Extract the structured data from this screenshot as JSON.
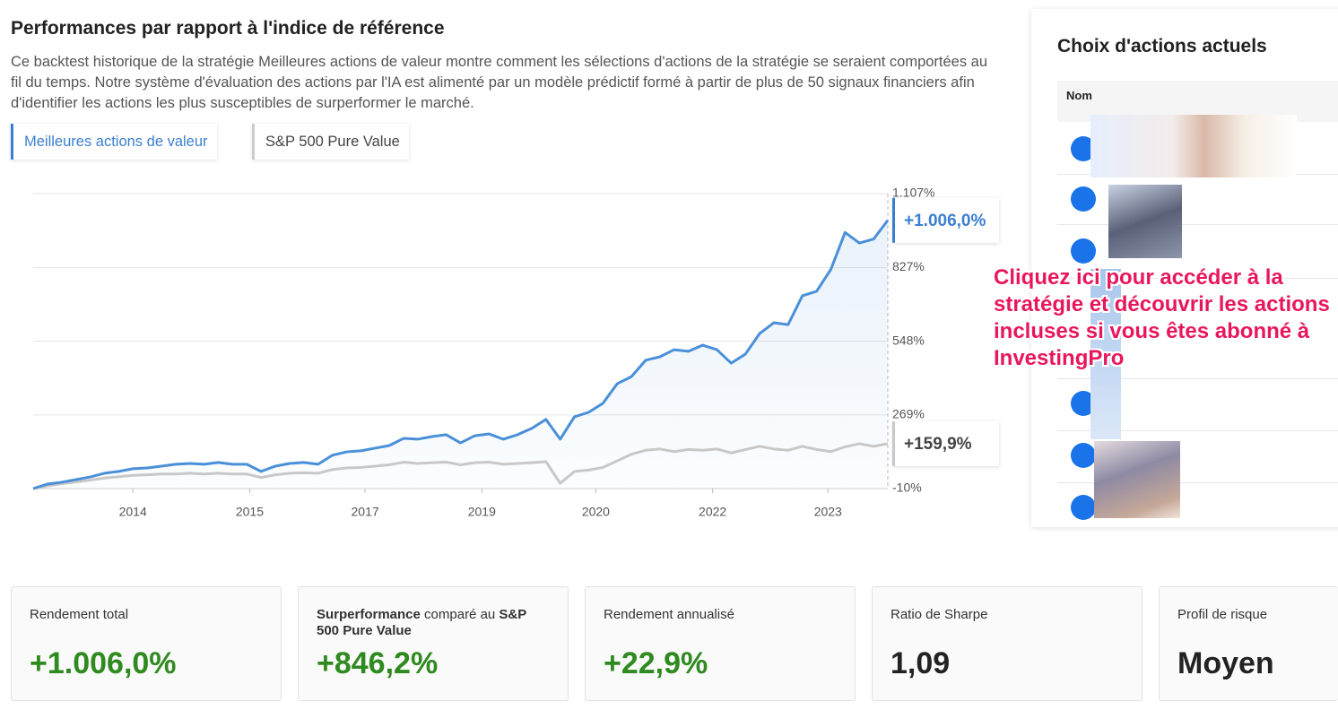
{
  "header": {
    "title": "Performances par rapport à l'indice de référence",
    "description": "Ce backtest historique de la stratégie Meilleures actions de valeur montre comment les sélections d'actions de la stratégie se seraient comportées au fil du temps. Notre système d'évaluation des actions par l'IA est alimenté par un modèle prédictif formé à partir de plus de 50 signaux financiers afin d'identifier les actions les plus susceptibles de surperformer le marché."
  },
  "tabs": [
    "Meilleures actions de valeur",
    "S&P 500 Pure Value"
  ],
  "chart_data": {
    "type": "line",
    "x": [
      0,
      1,
      2,
      3,
      4,
      5,
      6,
      7,
      8,
      9,
      10,
      11,
      12,
      13,
      14,
      15,
      16,
      17,
      18,
      19,
      20,
      21,
      22,
      23,
      24,
      25,
      26,
      27,
      28,
      29,
      30,
      31,
      32,
      33,
      34,
      35,
      36,
      37,
      38,
      39,
      40,
      41,
      42,
      43,
      44,
      45,
      46,
      47,
      48,
      49,
      50,
      51,
      52,
      53,
      54,
      55,
      56,
      57,
      58,
      59,
      60
    ],
    "xlim": [
      0,
      60
    ],
    "xticks": [
      {
        "value": 7,
        "label": "2014"
      },
      {
        "value": 15.2,
        "label": "2015"
      },
      {
        "value": 23.3,
        "label": "2017"
      },
      {
        "value": 31.5,
        "label": "2019"
      },
      {
        "value": 39.5,
        "label": "2020"
      },
      {
        "value": 47.7,
        "label": "2022"
      },
      {
        "value": 55.8,
        "label": "2023"
      }
    ],
    "ylim": [
      -10,
      1107
    ],
    "yticks": [
      {
        "value": -10,
        "label": "-10%"
      },
      {
        "value": 269,
        "label": "269%"
      },
      {
        "value": 548,
        "label": "548%"
      },
      {
        "value": 827,
        "label": "827%"
      },
      {
        "value": 1107,
        "label": "1.107%"
      }
    ],
    "grid": true,
    "series": [
      {
        "name": "Meilleures actions de valeur",
        "color": "#4a90d9",
        "values": [
          -10,
          7,
          14,
          24,
          34,
          48,
          55,
          65,
          68,
          75,
          82,
          85,
          82,
          89,
          82,
          82,
          55,
          75,
          85,
          89,
          82,
          116,
          129,
          133,
          143,
          153,
          180,
          177,
          187,
          194,
          163,
          190,
          197,
          177,
          194,
          218,
          252,
          177,
          262,
          279,
          313,
          387,
          414,
          476,
          489,
          516,
          510,
          533,
          516,
          465,
          499,
          577,
          618,
          611,
          720,
          737,
          820,
          960,
          920,
          935,
          1006
        ],
        "value_labels": [
          null,
          null,
          null,
          null,
          null,
          null,
          null,
          null,
          null,
          null,
          null,
          null,
          null,
          null,
          null,
          null,
          null,
          null,
          null,
          null,
          null,
          null,
          null,
          null,
          null,
          null,
          null,
          null,
          null,
          null,
          null,
          null,
          null,
          null,
          null,
          null,
          null,
          null,
          null,
          null,
          null,
          null,
          null,
          null,
          null,
          null,
          null,
          null,
          null,
          null,
          null,
          null,
          null,
          null,
          null,
          null,
          null,
          null,
          null,
          null,
          "+1.006,0%"
        ]
      },
      {
        "name": "S&P 500 Pure Value",
        "color": "#c8c8c8",
        "values": [
          -10,
          0,
          8,
          15,
          22,
          30,
          35,
          40,
          42,
          45,
          45,
          48,
          45,
          48,
          45,
          45,
          32,
          42,
          48,
          50,
          48,
          62,
          68,
          70,
          75,
          80,
          90,
          85,
          88,
          90,
          80,
          88,
          90,
          82,
          85,
          88,
          92,
          10,
          55,
          60,
          70,
          95,
          120,
          135,
          140,
          130,
          138,
          135,
          140,
          125,
          138,
          150,
          140,
          135,
          150,
          138,
          130,
          148,
          160,
          150,
          159.9
        ],
        "value_labels": [
          null,
          null,
          null,
          null,
          null,
          null,
          null,
          null,
          null,
          null,
          null,
          null,
          null,
          null,
          null,
          null,
          null,
          null,
          null,
          null,
          null,
          null,
          null,
          null,
          null,
          null,
          null,
          null,
          null,
          null,
          null,
          null,
          null,
          null,
          null,
          null,
          null,
          null,
          null,
          null,
          null,
          null,
          null,
          null,
          null,
          null,
          null,
          null,
          null,
          null,
          null,
          null,
          null,
          null,
          null,
          null,
          null,
          null,
          null,
          null,
          "+159,9%"
        ]
      }
    ]
  },
  "stats": [
    {
      "label": "Rendement total",
      "value": "+1.006,0%"
    },
    {
      "label_parts": [
        "Surperformance",
        " comparé au ",
        "S&P 500 Pure Value"
      ],
      "value": "+846,2%"
    },
    {
      "label": "Rendement annualisé",
      "value": "+22,9%"
    },
    {
      "label": "Ratio de Sharpe",
      "value": "1,09"
    },
    {
      "label": "Profil de risque",
      "value": "Moyen"
    }
  ],
  "panel": {
    "title": "Choix d'actions actuels",
    "column": "Nom",
    "overlay": "Cliquez ici pour accéder à la stratégie et découvrir les actions incluses si vous êtes abonné à InvestingPro"
  }
}
